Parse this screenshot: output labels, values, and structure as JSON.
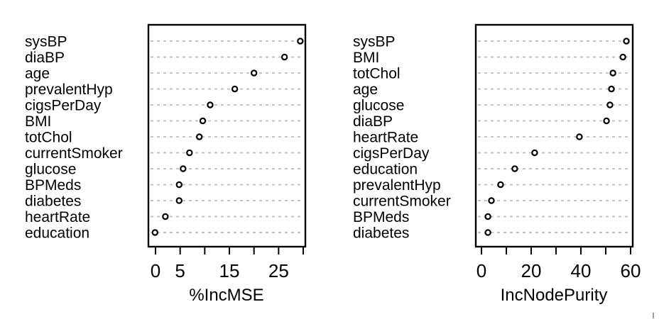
{
  "page": {
    "background": "#ffffff"
  },
  "colors": {
    "text": "#000000",
    "box": "#000000",
    "gridline": "#c3c3c3",
    "tick": "#000000",
    "point_stroke": "#000000",
    "point_fill": "#ffffff",
    "artifact": "#9e9e9e"
  },
  "chart_data": [
    {
      "type": "scatter",
      "subtype": "dotchart",
      "title": "",
      "xlabel": "%IncMSE",
      "ylabel": "",
      "grid": "dashed-horizontal",
      "legend": "none",
      "point_marker": "open-circle",
      "categories": [
        "sysBP",
        "diaBP",
        "age",
        "prevalentHyp",
        "cigsPerDay",
        "BMI",
        "totChol",
        "currentSmoker",
        "glucose",
        "BPMeds",
        "diabetes",
        "heartRate",
        "education"
      ],
      "values": [
        29.4,
        26.2,
        20.0,
        16.1,
        11.1,
        9.6,
        8.9,
        6.9,
        5.6,
        4.8,
        4.8,
        2.0,
        -0.1
      ],
      "xlim": [
        -1.5,
        30.5
      ],
      "ticks": [
        0,
        5,
        10,
        15,
        20,
        25,
        30
      ],
      "tick_labels": [
        "0",
        "5",
        "",
        "15",
        "",
        "25",
        ""
      ]
    },
    {
      "type": "scatter",
      "subtype": "dotchart",
      "title": "",
      "xlabel": "IncNodePurity",
      "ylabel": "",
      "grid": "dashed-horizontal",
      "legend": "none",
      "point_marker": "open-circle",
      "categories": [
        "sysBP",
        "BMI",
        "totChol",
        "age",
        "glucose",
        "diaBP",
        "heartRate",
        "cigsPerDay",
        "education",
        "prevalentHyp",
        "currentSmoker",
        "BPMeds",
        "diabetes"
      ],
      "values": [
        58.3,
        56.9,
        52.9,
        52.3,
        51.7,
        50.3,
        39.4,
        21.4,
        13.4,
        7.7,
        4.0,
        2.6,
        2.6
      ],
      "xlim": [
        -2.4,
        61.0
      ],
      "ticks": [
        0,
        10,
        20,
        30,
        40,
        50,
        60
      ],
      "tick_labels": [
        "0",
        "",
        "20",
        "",
        "40",
        "",
        "60"
      ]
    }
  ]
}
